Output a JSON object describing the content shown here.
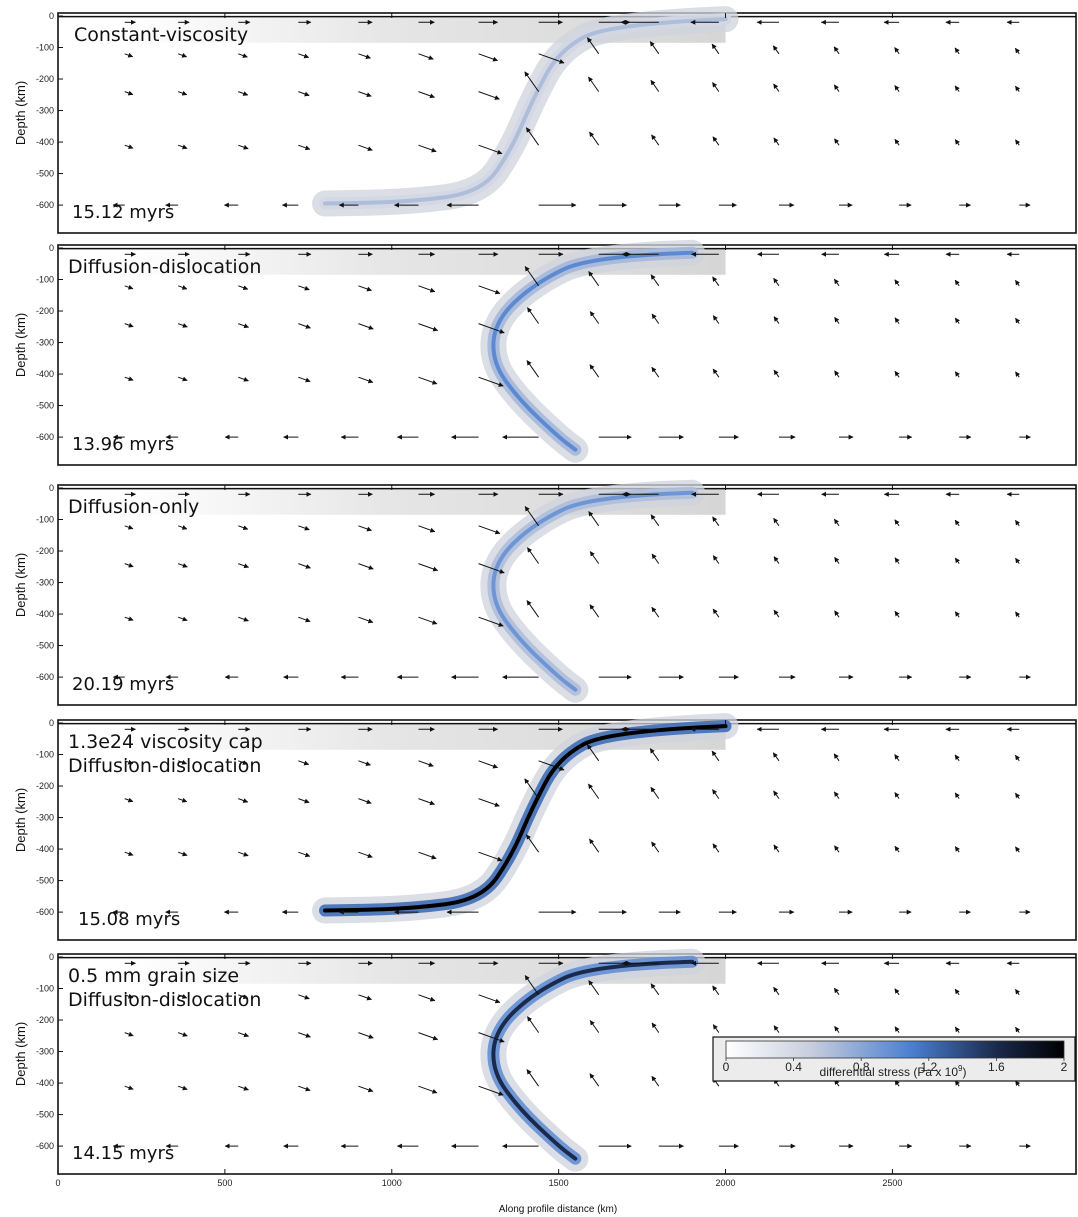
{
  "x_axis": {
    "label": "Along profile distance (km)",
    "min": 0,
    "max": 3050,
    "ticks": [
      0,
      500,
      1000,
      1500,
      2000,
      2500
    ]
  },
  "y_axis": {
    "label": "Depth (km)",
    "min": 0,
    "max": 660,
    "ticks": [
      0,
      -100,
      -200,
      -300,
      -400,
      -500,
      -600
    ]
  },
  "panels": [
    {
      "title_lines": [
        "Constant-viscosity"
      ],
      "time": "15.12 myrs",
      "shape": "flat",
      "peak_stress": 0.55
    },
    {
      "title_lines": [
        "Diffusion-dislocation"
      ],
      "time": "13.96 myrs",
      "shape": "curl",
      "peak_stress": 1.0
    },
    {
      "title_lines": [
        "Diffusion-only"
      ],
      "time": "20.19 myrs",
      "shape": "curl",
      "peak_stress": 0.9
    },
    {
      "title_lines": [
        "1.3e24 viscosity cap",
        "Diffusion-dislocation"
      ],
      "time": "15.08 myrs",
      "shape": "flat",
      "peak_stress": 2.0
    },
    {
      "title_lines": [
        "0.5 mm grain size",
        "Diffusion-dislocation"
      ],
      "time": "14.15 myrs",
      "shape": "curl",
      "peak_stress": 1.6
    }
  ],
  "colorbar": {
    "min": 0,
    "max": 2,
    "ticks": [
      "0",
      "0.4",
      "0.8",
      "1.2",
      "1.6",
      "2"
    ],
    "label": "differential stress (Pa x 10",
    "label_sup": "9",
    "label_end": ")",
    "colors": [
      "#ffffff",
      "#c9cfdc",
      "#4d7fcf",
      "#1b2b4f",
      "#000000"
    ]
  }
}
